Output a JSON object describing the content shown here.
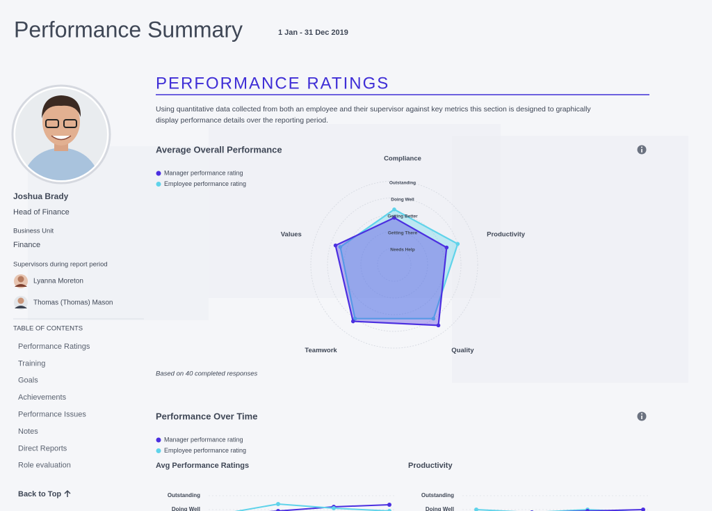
{
  "header": {
    "title": "Performance Summary",
    "date_range": "1 Jan - 31 Dec 2019"
  },
  "profile": {
    "name": "Joshua Brady",
    "role": "Head of Finance",
    "business_unit_label": "Business Unit",
    "business_unit": "Finance",
    "supervisors_label": "Supervisors during report period",
    "supervisors": [
      "Lyanna Moreton",
      "Thomas (Thomas) Mason"
    ]
  },
  "toc": {
    "title": "TABLE OF CONTENTS",
    "items": [
      "Performance Ratings",
      "Training",
      "Goals",
      "Achievements",
      "Performance Issues",
      "Notes",
      "Direct Reports",
      "Role evaluation"
    ],
    "back_to_top": "Back to Top"
  },
  "section": {
    "title": "PERFORMANCE RATINGS",
    "description_lines": [
      "Using quantitative data collected from both an employee and their supervisor against key metrics this section is designed to graphically",
      "display performance details over the reporting period."
    ]
  },
  "over_time": {
    "title": "Performance Over Time"
  },
  "chart_data": [
    {
      "type": "radar",
      "title": "Average Overall Performance",
      "axes": [
        "Compliance",
        "Productivity",
        "Quality",
        "Teamwork",
        "Values"
      ],
      "rlim": [
        0,
        5
      ],
      "rticks": [
        {
          "value": 1,
          "label": "Needs Help"
        },
        {
          "value": 2,
          "label": "Getting There"
        },
        {
          "value": 3,
          "label": "Getting Better"
        },
        {
          "value": 4,
          "label": "Doing Well"
        },
        {
          "value": 5,
          "label": "Outstanding"
        }
      ],
      "series": [
        {
          "name": "Manager performance rating",
          "color": "#4b2fe0",
          "values": [
            2.8,
            3.3,
            4.5,
            4.2,
            3.7
          ]
        },
        {
          "name": "Employee performance rating",
          "color": "#5fd3ea",
          "values": [
            3.3,
            4.0,
            4.0,
            4.0,
            3.4
          ]
        }
      ],
      "note": "Based on 40 completed responses"
    },
    {
      "type": "line",
      "title": "Avg Performance Ratings",
      "categories": [
        null,
        null,
        null,
        null
      ],
      "ylim": [
        0,
        5
      ],
      "yticks": [
        {
          "value": 5,
          "label": "Outstanding"
        },
        {
          "value": 4,
          "label": "Doing Well"
        }
      ],
      "series": [
        {
          "name": "Manager performance rating",
          "color": "#4b2fe0",
          "values": [
            3.6,
            3.9,
            4.2,
            4.35
          ]
        },
        {
          "name": "Employee performance rating",
          "color": "#5fd3ea",
          "values": [
            3.7,
            4.4,
            4.1,
            3.9
          ]
        }
      ]
    },
    {
      "type": "line",
      "title": "Productivity",
      "categories": [
        null,
        null,
        null,
        null
      ],
      "ylim": [
        0,
        5
      ],
      "yticks": [
        {
          "value": 5,
          "label": "Outstanding"
        },
        {
          "value": 4,
          "label": "Doing Well"
        }
      ],
      "series": [
        {
          "color": "#5fd3ea",
          "values": [
            4.0,
            3.8,
            4.0,
            3.8
          ]
        },
        {
          "color": "#4b2fe0",
          "values": [
            3.7,
            3.8,
            3.9,
            4.0
          ]
        }
      ]
    }
  ]
}
